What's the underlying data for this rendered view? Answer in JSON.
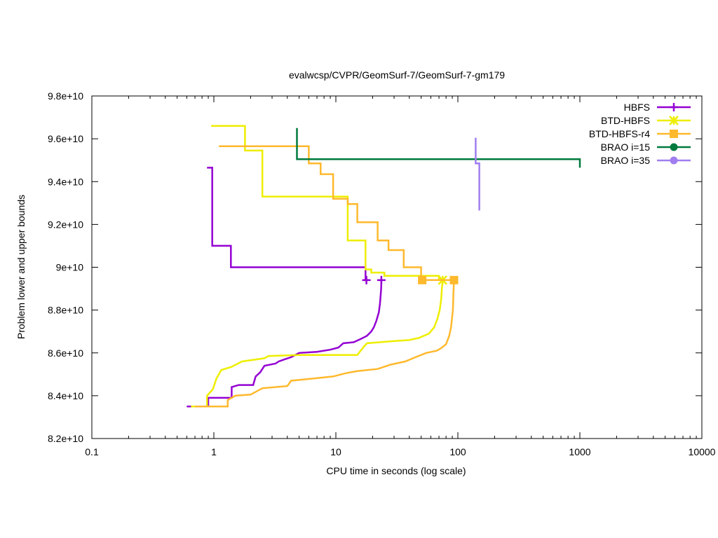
{
  "chart_data": {
    "type": "line",
    "title": "evalwcsp/CVPR/GeomSurf-7/GeomSurf-7-gm179",
    "xlabel": "CPU time in seconds (log scale)",
    "ylabel": "Problem lower and upper bounds",
    "x_scale": "log",
    "xlim": [
      0.1,
      10000
    ],
    "ylim": [
      82000000000.0,
      98000000000.0
    ],
    "x_ticks": [
      {
        "value": 0.1,
        "label": "0.1"
      },
      {
        "value": 1,
        "label": "1"
      },
      {
        "value": 10,
        "label": "10"
      },
      {
        "value": 100,
        "label": "100"
      },
      {
        "value": 1000,
        "label": "1000"
      },
      {
        "value": 10000,
        "label": "10000"
      }
    ],
    "y_ticks": [
      {
        "value": 82000000000.0,
        "label": "8.2e+10"
      },
      {
        "value": 84000000000.0,
        "label": "8.4e+10"
      },
      {
        "value": 86000000000.0,
        "label": "8.6e+10"
      },
      {
        "value": 88000000000.0,
        "label": "8.8e+10"
      },
      {
        "value": 90000000000.0,
        "label": "9e+10"
      },
      {
        "value": 92000000000.0,
        "label": "9.2e+10"
      },
      {
        "value": 94000000000.0,
        "label": "9.4e+10"
      },
      {
        "value": 96000000000.0,
        "label": "9.6e+10"
      },
      {
        "value": 98000000000.0,
        "label": "9.8e+10"
      }
    ],
    "legend_position": "top-right",
    "series": [
      {
        "name": "HBFS",
        "color": "#9400d3",
        "marker": "plus",
        "upper": [
          [
            0.88,
            94650000000.0
          ],
          [
            0.97,
            94650000000.0
          ],
          [
            0.97,
            91000000000.0
          ],
          [
            1.38,
            91000000000.0
          ],
          [
            1.38,
            90000000000.0
          ],
          [
            17.5,
            90000000000.0
          ],
          [
            17.5,
            89400000000.0
          ],
          [
            18.5,
            89400000000.0
          ]
        ],
        "lower": [
          [
            0.6,
            83500000000.0
          ],
          [
            0.9,
            83500000000.0
          ],
          [
            0.9,
            83900000000.0
          ],
          [
            1.4,
            83900000000.0
          ],
          [
            1.4,
            84400000000.0
          ],
          [
            1.6,
            84500000000.0
          ],
          [
            2.1,
            84500000000.0
          ],
          [
            2.2,
            84900000000.0
          ],
          [
            2.4,
            85100000000.0
          ],
          [
            2.6,
            85400000000.0
          ],
          [
            3.2,
            85500000000.0
          ],
          [
            3.4,
            85600000000.0
          ],
          [
            3.8,
            85700000000.0
          ],
          [
            4.3,
            85800000000.0
          ],
          [
            5.0,
            86000000000.0
          ],
          [
            7.0,
            86050000000.0
          ],
          [
            9.0,
            86150000000.0
          ],
          [
            10.5,
            86250000000.0
          ],
          [
            11.5,
            86450000000.0
          ],
          [
            14.0,
            86500000000.0
          ],
          [
            16.0,
            86650000000.0
          ],
          [
            18.0,
            86800000000.0
          ],
          [
            19.5,
            87000000000.0
          ],
          [
            20.5,
            87200000000.0
          ],
          [
            21.5,
            87500000000.0
          ],
          [
            22.5,
            87900000000.0
          ],
          [
            23.0,
            88300000000.0
          ],
          [
            23.3,
            88700000000.0
          ],
          [
            23.5,
            89000000000.0
          ],
          [
            23.6,
            89400000000.0
          ]
        ],
        "markers": [
          [
            17.8,
            89400000000.0
          ],
          [
            23.6,
            89400000000.0
          ]
        ]
      },
      {
        "name": "BTD-HBFS",
        "color": "#eeee00",
        "marker": "star",
        "upper": [
          [
            0.95,
            96600000000.0
          ],
          [
            1.8,
            96600000000.0
          ],
          [
            1.8,
            95450000000.0
          ],
          [
            2.5,
            95450000000.0
          ],
          [
            2.5,
            93300000000.0
          ],
          [
            12.5,
            93300000000.0
          ],
          [
            12.5,
            91250000000.0
          ],
          [
            17.5,
            91250000000.0
          ],
          [
            17.5,
            89900000000.0
          ],
          [
            19.5,
            89900000000.0
          ],
          [
            19.5,
            89750000000.0
          ],
          [
            25.0,
            89750000000.0
          ],
          [
            25.0,
            89600000000.0
          ],
          [
            70.0,
            89600000000.0
          ],
          [
            70.0,
            89400000000.0
          ],
          [
            75.0,
            89400000000.0
          ]
        ],
        "lower": [
          [
            0.65,
            83500000000.0
          ],
          [
            0.88,
            83500000000.0
          ],
          [
            0.88,
            84000000000.0
          ],
          [
            0.98,
            84300000000.0
          ],
          [
            1.05,
            84800000000.0
          ],
          [
            1.15,
            85200000000.0
          ],
          [
            1.4,
            85350000000.0
          ],
          [
            1.7,
            85600000000.0
          ],
          [
            2.6,
            85750000000.0
          ],
          [
            2.8,
            85850000000.0
          ],
          [
            5.0,
            85900000000.0
          ],
          [
            15.0,
            85900000000.0
          ],
          [
            17.0,
            86300000000.0
          ],
          [
            18.0,
            86450000000.0
          ],
          [
            30.0,
            86550000000.0
          ],
          [
            40.0,
            86600000000.0
          ],
          [
            48.0,
            86700000000.0
          ],
          [
            58.0,
            86900000000.0
          ],
          [
            64.0,
            87200000000.0
          ],
          [
            68.0,
            87600000000.0
          ],
          [
            71.0,
            88000000000.0
          ],
          [
            73.0,
            88500000000.0
          ],
          [
            74.0,
            89000000000.0
          ],
          [
            75.0,
            89400000000.0
          ]
        ],
        "markers": [
          [
            75.0,
            89400000000.0
          ]
        ]
      },
      {
        "name": "BTD-HBFS-r4",
        "color": "#ffb92d",
        "marker": "square",
        "upper": [
          [
            1.1,
            95650000000.0
          ],
          [
            6.0,
            95650000000.0
          ],
          [
            6.0,
            94850000000.0
          ],
          [
            7.5,
            94850000000.0
          ],
          [
            7.5,
            94350000000.0
          ],
          [
            9.5,
            94350000000.0
          ],
          [
            9.5,
            93200000000.0
          ],
          [
            12.5,
            93200000000.0
          ],
          [
            12.5,
            92950000000.0
          ],
          [
            15.0,
            92950000000.0
          ],
          [
            15.0,
            92100000000.0
          ],
          [
            22.0,
            92100000000.0
          ],
          [
            22.0,
            91250000000.0
          ],
          [
            27.0,
            91250000000.0
          ],
          [
            27.0,
            90800000000.0
          ],
          [
            36.0,
            90800000000.0
          ],
          [
            36.0,
            90000000000.0
          ],
          [
            50.0,
            90000000000.0
          ],
          [
            50.0,
            89400000000.0
          ],
          [
            93.0,
            89400000000.0
          ]
        ],
        "lower": [
          [
            0.7,
            83500000000.0
          ],
          [
            1.3,
            83500000000.0
          ],
          [
            1.3,
            83800000000.0
          ],
          [
            1.5,
            84000000000.0
          ],
          [
            2.0,
            84050000000.0
          ],
          [
            2.5,
            84350000000.0
          ],
          [
            4.0,
            84450000000.0
          ],
          [
            4.3,
            84700000000.0
          ],
          [
            6.5,
            84800000000.0
          ],
          [
            9.5,
            84900000000.0
          ],
          [
            12.0,
            85050000000.0
          ],
          [
            15.0,
            85150000000.0
          ],
          [
            22.0,
            85250000000.0
          ],
          [
            28.0,
            85450000000.0
          ],
          [
            37.0,
            85600000000.0
          ],
          [
            45.0,
            85800000000.0
          ],
          [
            55.0,
            86000000000.0
          ],
          [
            67.0,
            86100000000.0
          ],
          [
            72.0,
            86200000000.0
          ],
          [
            80.0,
            86400000000.0
          ],
          [
            85.0,
            86800000000.0
          ],
          [
            88.0,
            87200000000.0
          ],
          [
            91.0,
            88000000000.0
          ],
          [
            92.0,
            88800000000.0
          ],
          [
            93.0,
            89400000000.0
          ]
        ],
        "markers": [
          [
            51.0,
            89400000000.0
          ],
          [
            93.0,
            89400000000.0
          ]
        ]
      },
      {
        "name": "BRAO i=15",
        "color": "#007a3d",
        "marker": "circle",
        "upper": [
          [
            4.8,
            96500000000.0
          ],
          [
            4.8,
            95050000000.0
          ],
          [
            1000,
            95050000000.0
          ],
          [
            1000,
            94650000000.0
          ]
        ],
        "lower": [],
        "markers": []
      },
      {
        "name": "BRAO i=35",
        "color": "#a07ef0",
        "marker": "circle",
        "upper": [
          [
            140,
            96050000000.0
          ],
          [
            140,
            94850000000.0
          ],
          [
            150,
            94850000000.0
          ],
          [
            150,
            92650000000.0
          ]
        ],
        "lower": [],
        "markers": []
      }
    ]
  }
}
